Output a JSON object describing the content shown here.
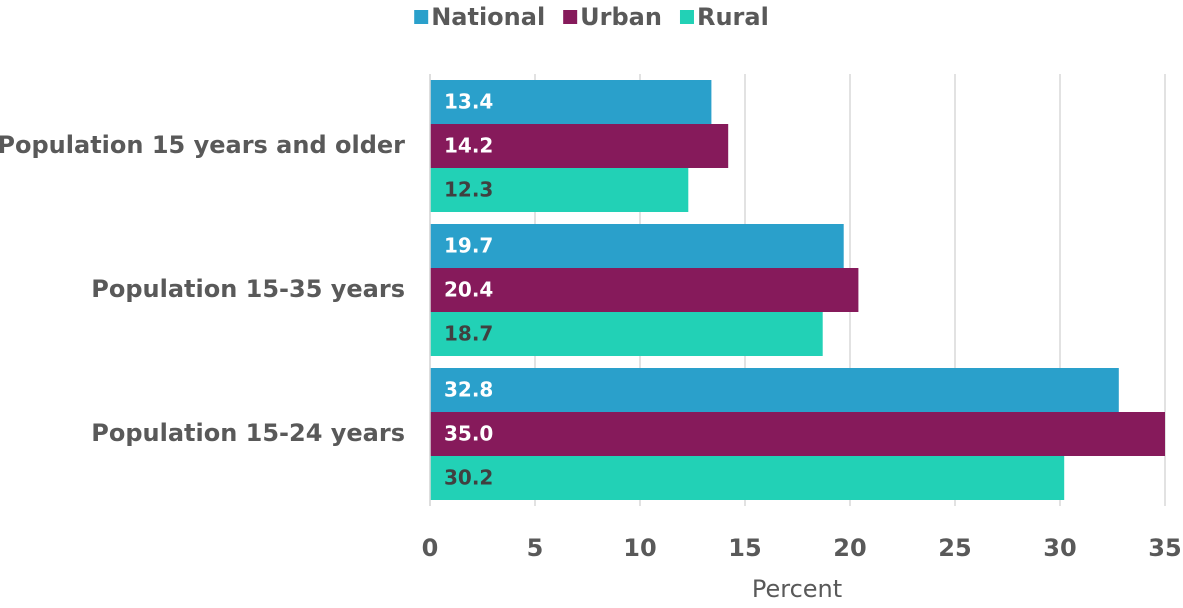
{
  "chart_data": {
    "type": "hbar",
    "categories": [
      "Population 15 years and older",
      "Population 15-35 years",
      "Population 15-24 years"
    ],
    "series": [
      {
        "name": "National",
        "color": "#2aa0cb",
        "values": [
          13.4,
          19.7,
          32.8
        ]
      },
      {
        "name": "Urban",
        "color": "#861a5b",
        "values": [
          14.2,
          20.4,
          35
        ],
        "value_labels": [
          "14.2",
          "20.4",
          "35.0"
        ]
      },
      {
        "name": "Rural",
        "color": "#22d1b6",
        "values": [
          12.3,
          18.7,
          30.2
        ]
      }
    ],
    "xlabel": "Percent",
    "xlim": [
      0,
      35
    ],
    "xticks": [
      0,
      5,
      10,
      15,
      20,
      25,
      30,
      35
    ],
    "grid": true,
    "legend": "top"
  }
}
